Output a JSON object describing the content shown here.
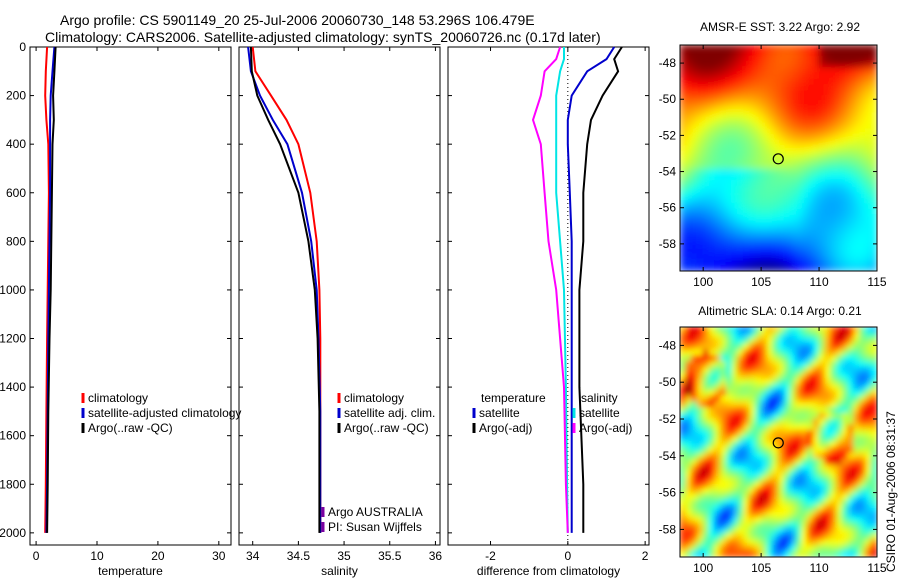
{
  "header": {
    "line1": "Argo profile: CS 5901149_20 25-Jul-2006 20060730_148 53.296S 106.479E",
    "line2": "Climatology: CARS2006. Satellite-adjusted climatology: synTS_20060726.nc (0.17d later)"
  },
  "credit": "CSIRO 01-Aug-2006 08:31:37",
  "colors": {
    "climatology": "#ff0000",
    "satellite": "#0000cc",
    "argo": "#000000",
    "sat_salinity": "#00e5e5",
    "argo_salinity": "#ff00ff"
  },
  "chart_data": [
    {
      "type": "line",
      "xlabel": "temperature",
      "ylabel": "",
      "xlim": [
        -1,
        32
      ],
      "ylim": [
        2050,
        0
      ],
      "x_ticks": [
        "0",
        "10",
        "20",
        "30"
      ],
      "x_tick_values": [
        0,
        10,
        20,
        30
      ],
      "y_ticks": [
        "0",
        "200",
        "400",
        "600",
        "800",
        "1000",
        "1200",
        "1400",
        "1600",
        "1800",
        "2000"
      ],
      "legend": [
        "climatology",
        "satellite-adjusted climatology",
        "Argo(..raw -QC)"
      ],
      "series": [
        {
          "name": "climatology",
          "color": "#ff0000",
          "x": [
            1.8,
            1.6,
            1.5,
            1.7,
            2.0,
            2.1,
            2.0,
            1.9,
            1.8,
            1.7,
            1.6,
            1.5
          ],
          "y": [
            0,
            100,
            200,
            300,
            400,
            600,
            800,
            1000,
            1200,
            1500,
            1800,
            2000
          ]
        },
        {
          "name": "satellite-adjusted climatology",
          "color": "#0000cc",
          "x": [
            3.0,
            2.7,
            2.4,
            2.3,
            2.3,
            2.3,
            2.2,
            2.1,
            2.0,
            1.9,
            1.8,
            1.7
          ],
          "y": [
            0,
            100,
            200,
            300,
            400,
            600,
            800,
            1000,
            1200,
            1500,
            1800,
            2000
          ]
        },
        {
          "name": "Argo(..raw -QC)",
          "color": "#000000",
          "x": [
            3.2,
            3.0,
            2.8,
            2.9,
            2.7,
            2.6,
            2.5,
            2.4,
            2.2,
            2.0,
            1.9,
            1.8
          ],
          "y": [
            0,
            100,
            200,
            300,
            400,
            600,
            800,
            1000,
            1200,
            1500,
            1800,
            2000
          ]
        }
      ]
    },
    {
      "type": "line",
      "xlabel": "salinity",
      "ylabel": "",
      "xlim": [
        33.85,
        36.05
      ],
      "ylim": [
        2050,
        0
      ],
      "x_ticks": [
        "34",
        "34.5",
        "35",
        "35.5",
        "36"
      ],
      "x_tick_values": [
        34,
        34.5,
        35,
        35.5,
        36
      ],
      "legend": [
        "climatology",
        "satellite adj. clim.",
        "Argo(..raw -QC)"
      ],
      "annotation": [
        "Argo AUSTRALIA",
        "PI: Susan Wijffels"
      ],
      "series": [
        {
          "name": "climatology",
          "color": "#ff0000",
          "x": [
            34.0,
            34.03,
            34.2,
            34.37,
            34.5,
            34.63,
            34.7,
            34.73,
            34.74,
            34.74,
            34.74,
            34.74
          ],
          "y": [
            0,
            100,
            200,
            300,
            400,
            600,
            800,
            1000,
            1200,
            1500,
            1800,
            2000
          ]
        },
        {
          "name": "satellite adj. clim.",
          "color": "#0000cc",
          "x": [
            33.95,
            33.98,
            34.08,
            34.22,
            34.38,
            34.54,
            34.64,
            34.7,
            34.72,
            34.74,
            34.74,
            34.74
          ],
          "y": [
            0,
            100,
            200,
            300,
            400,
            600,
            800,
            1000,
            1200,
            1500,
            1800,
            2000
          ]
        },
        {
          "name": "Argo(..raw -QC)",
          "color": "#000000",
          "x": [
            33.98,
            33.99,
            34.05,
            34.17,
            34.3,
            34.5,
            34.61,
            34.68,
            34.71,
            34.73,
            34.73,
            34.73
          ],
          "y": [
            0,
            100,
            200,
            300,
            400,
            600,
            800,
            1000,
            1200,
            1500,
            1800,
            2000
          ]
        }
      ]
    },
    {
      "type": "line",
      "xlabel": "difference from climatology",
      "ylabel": "",
      "xlim": [
        -3.1,
        2.1
      ],
      "ylim": [
        2050,
        0
      ],
      "x_ticks": [
        "-2",
        "0",
        "2"
      ],
      "x_tick_values": [
        -2,
        0,
        2
      ],
      "legend_groups": [
        {
          "heading": "temperature",
          "items": [
            "satellite",
            "Argo(-adj)"
          ]
        },
        {
          "heading": "salinity",
          "items": [
            "satellite",
            "Argo(-adj)"
          ]
        }
      ],
      "series": [
        {
          "name": "temperature satellite",
          "color": "#0000cc",
          "x": [
            1.2,
            1.0,
            0.5,
            0.1,
            0.0,
            0.0,
            0.05,
            0.1,
            0.1,
            0.1,
            0.1,
            0.1
          ],
          "y": [
            0,
            50,
            100,
            200,
            300,
            400,
            600,
            800,
            1000,
            1400,
            1800,
            2000
          ]
        },
        {
          "name": "temperature Argo(-adj)",
          "color": "#000000",
          "x": [
            1.4,
            1.2,
            1.3,
            0.9,
            0.6,
            0.5,
            0.4,
            0.4,
            0.3,
            0.3,
            0.4,
            0.4
          ],
          "y": [
            0,
            50,
            100,
            200,
            300,
            400,
            600,
            800,
            1000,
            1400,
            1800,
            2000
          ]
        },
        {
          "name": "salinity satellite",
          "color": "#00e5e5",
          "x": [
            -0.1,
            -0.1,
            -0.2,
            -0.3,
            -0.3,
            -0.3,
            -0.3,
            -0.2,
            -0.1,
            -0.05,
            -0.02,
            0.0
          ],
          "y": [
            0,
            50,
            100,
            200,
            300,
            400,
            600,
            800,
            1000,
            1400,
            1800,
            2000
          ]
        },
        {
          "name": "salinity Argo(-adj)",
          "color": "#ff00ff",
          "x": [
            -0.2,
            -0.3,
            -0.6,
            -0.7,
            -0.9,
            -0.7,
            -0.6,
            -0.5,
            -0.3,
            -0.1,
            -0.05,
            0.0
          ],
          "y": [
            0,
            50,
            100,
            200,
            300,
            400,
            600,
            800,
            1000,
            1400,
            1800,
            2000
          ]
        }
      ]
    },
    {
      "type": "heatmap",
      "title": "AMSR-E SST: 3.22 Argo: 2.92",
      "xlim": [
        98,
        115
      ],
      "ylim": [
        -59.5,
        -47
      ],
      "x_ticks": [
        "100",
        "105",
        "110",
        "115"
      ],
      "x_tick_values": [
        100,
        105,
        110,
        115
      ],
      "y_ticks": [
        "-48",
        "-50",
        "-52",
        "-54",
        "-56",
        "-58"
      ],
      "y_tick_values": [
        -48,
        -50,
        -52,
        -54,
        -56,
        -58
      ],
      "marker": {
        "lon": 106.479,
        "lat": -53.296
      },
      "colormap": "jet"
    },
    {
      "type": "heatmap",
      "title": "Altimetric SLA: 0.14 Argo: 0.21",
      "xlim": [
        98,
        115
      ],
      "ylim": [
        -59.5,
        -47
      ],
      "x_ticks": [
        "100",
        "105",
        "110",
        "115"
      ],
      "x_tick_values": [
        100,
        105,
        110,
        115
      ],
      "y_ticks": [
        "-48",
        "-50",
        "-52",
        "-54",
        "-56",
        "-58"
      ],
      "y_tick_values": [
        -48,
        -50,
        -52,
        -54,
        -56,
        -58
      ],
      "marker": {
        "lon": 106.479,
        "lat": -53.296
      },
      "colormap": "jet"
    }
  ]
}
